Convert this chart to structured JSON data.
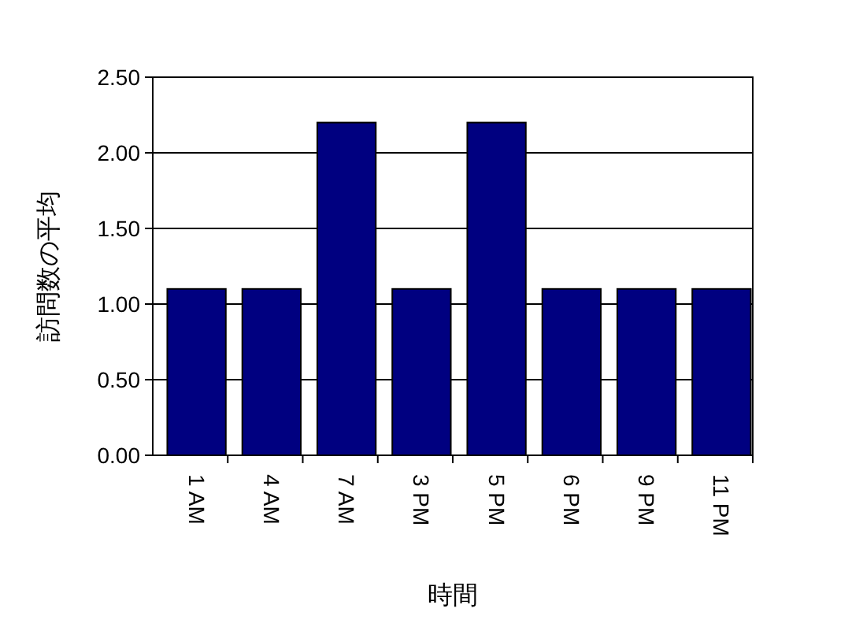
{
  "chart_data": {
    "type": "bar",
    "xlabel": "時間",
    "ylabel": "訪問数の平均",
    "categories": [
      "1 AM",
      "4 AM",
      "7 AM",
      "3 PM",
      "5 PM",
      "6 PM",
      "9 PM",
      "11 PM"
    ],
    "values": [
      1.1,
      1.1,
      2.2,
      1.1,
      2.2,
      1.1,
      1.1,
      1.1
    ],
    "color": "#000080",
    "ylim": [
      0,
      2.5
    ],
    "yticks": [
      {
        "value": 0,
        "label": "0.00"
      },
      {
        "value": 0.5,
        "label": "0.50"
      },
      {
        "value": 1,
        "label": "1.00"
      },
      {
        "value": 1.5,
        "label": "1.50"
      },
      {
        "value": 2,
        "label": "2.00"
      },
      {
        "value": 2.5,
        "label": "2.50"
      }
    ],
    "grid": "y"
  }
}
